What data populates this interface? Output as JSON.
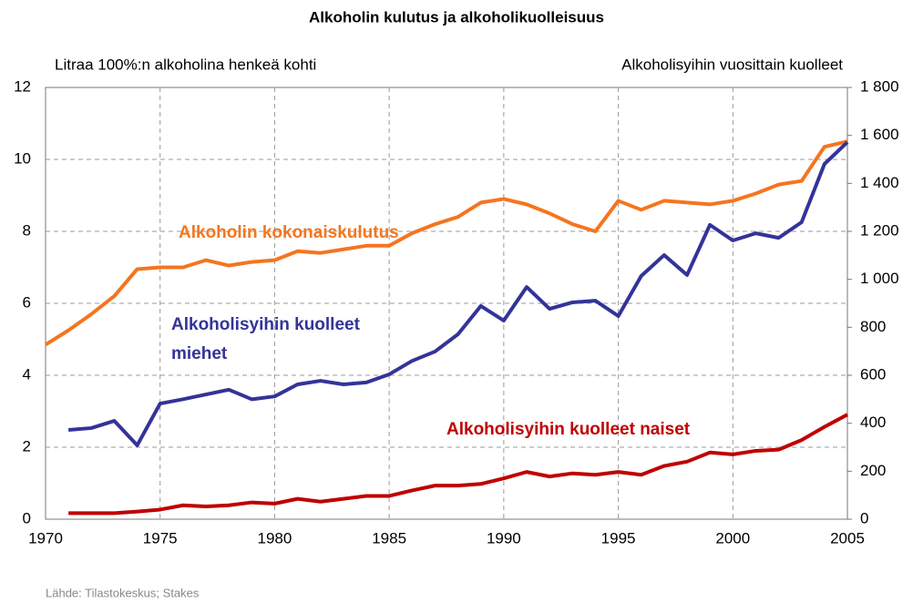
{
  "chart_data": {
    "type": "line",
    "title": "Alkoholin kulutus ja alkoholikuolleisuus",
    "y_label": "Litraa 100%:n alkoholina henkeä kohti",
    "y2_label": "Alkoholisyihin vuosittain kuolleet",
    "source": "Lähde: Tilastokeskus; Stakes",
    "x": [
      1970,
      1971,
      1972,
      1973,
      1974,
      1975,
      1976,
      1977,
      1978,
      1979,
      1980,
      1981,
      1982,
      1983,
      1984,
      1985,
      1986,
      1987,
      1988,
      1989,
      1990,
      1991,
      1992,
      1993,
      1994,
      1995,
      1996,
      1997,
      1998,
      1999,
      2000,
      2001,
      2002,
      2003,
      2004,
      2005
    ],
    "xlim": [
      1970,
      2005
    ],
    "xticks": [
      1970,
      1975,
      1980,
      1985,
      1990,
      1995,
      2000,
      2005
    ],
    "ylim": [
      0,
      12
    ],
    "yticks": [
      0,
      2,
      4,
      6,
      8,
      10,
      12
    ],
    "y2lim": [
      0,
      1800
    ],
    "y2ticks": [
      0,
      200,
      400,
      600,
      800,
      {
        "value": 1000,
        "label": "1 000"
      },
      {
        "value": 1200,
        "label": "1 200"
      },
      {
        "value": 1400,
        "label": "1 400"
      },
      {
        "value": 1600,
        "label": "1 600"
      },
      {
        "value": 1800,
        "label": "1 800"
      }
    ],
    "grid": true,
    "series": [
      {
        "name": "Alkoholin kokonaiskulutus",
        "color": "#f5751f",
        "values": [
          4.85,
          5.25,
          5.7,
          6.2,
          6.95,
          7.0,
          7.0,
          7.2,
          7.05,
          7.15,
          7.2,
          7.45,
          7.4,
          7.5,
          7.6,
          7.6,
          7.95,
          8.2,
          8.4,
          8.8,
          8.9,
          8.75,
          8.5,
          8.2,
          8.0,
          8.85,
          8.6,
          8.85,
          8.8,
          8.75,
          8.85,
          9.05,
          9.3,
          9.4,
          10.35,
          10.5
        ]
      },
      {
        "name": "Alkoholisyihin kuolleet miehet",
        "color": "#333399",
        "axis": "y2",
        "values": [
          null,
          372,
          380,
          410,
          308,
          482,
          500,
          520,
          540,
          500,
          512,
          562,
          577,
          562,
          570,
          604,
          660,
          699,
          771,
          889,
          828,
          968,
          877,
          904,
          911,
          847,
          1014,
          1101,
          1018,
          1227,
          1162,
          1192,
          1173,
          1238,
          1481,
          1572
        ]
      },
      {
        "name": "Alkoholisyihin kuolleet naiset",
        "color": "#c00000",
        "axis": "y2",
        "values": [
          null,
          25,
          25,
          25,
          32,
          40,
          58,
          53,
          58,
          70,
          65,
          85,
          73,
          85,
          97,
          97,
          120,
          140,
          140,
          147,
          170,
          197,
          178,
          191,
          185,
          197,
          185,
          222,
          240,
          278,
          270,
          285,
          290,
          330,
          385,
          436
        ]
      }
    ]
  }
}
